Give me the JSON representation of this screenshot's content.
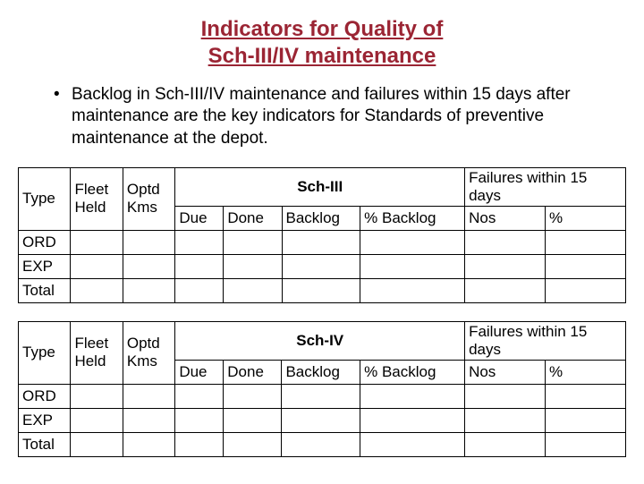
{
  "title_line1": "Indicators for Quality of",
  "title_line2": "Sch-III/IV maintenance",
  "bullet_text": "Backlog in Sch-III/IV maintenance and failures within 15 days after maintenance are the key indicators for Standards of preventive maintenance at the depot.",
  "table_common": {
    "hdr_type": "Type",
    "hdr_fleet": "Fleet Held",
    "hdr_optd": "Optd Kms",
    "hdr_due": "Due",
    "hdr_done": "Done",
    "hdr_backlog": "Backlog",
    "hdr_pct_backlog": "% Backlog",
    "hdr_failures": "Failures within 15 days",
    "hdr_nos": "Nos",
    "hdr_pct": "%",
    "row1": "ORD",
    "row2": "EXP",
    "row3": "Total"
  },
  "table1": {
    "sch_label": "Sch-III"
  },
  "table2": {
    "sch_label": "Sch-IV"
  },
  "colors": {
    "title": "#9b2534",
    "text": "#000000",
    "border": "#000000",
    "background": "#ffffff"
  },
  "font": {
    "title_size_pt": 18,
    "body_size_pt": 14,
    "table_size_pt": 13
  }
}
